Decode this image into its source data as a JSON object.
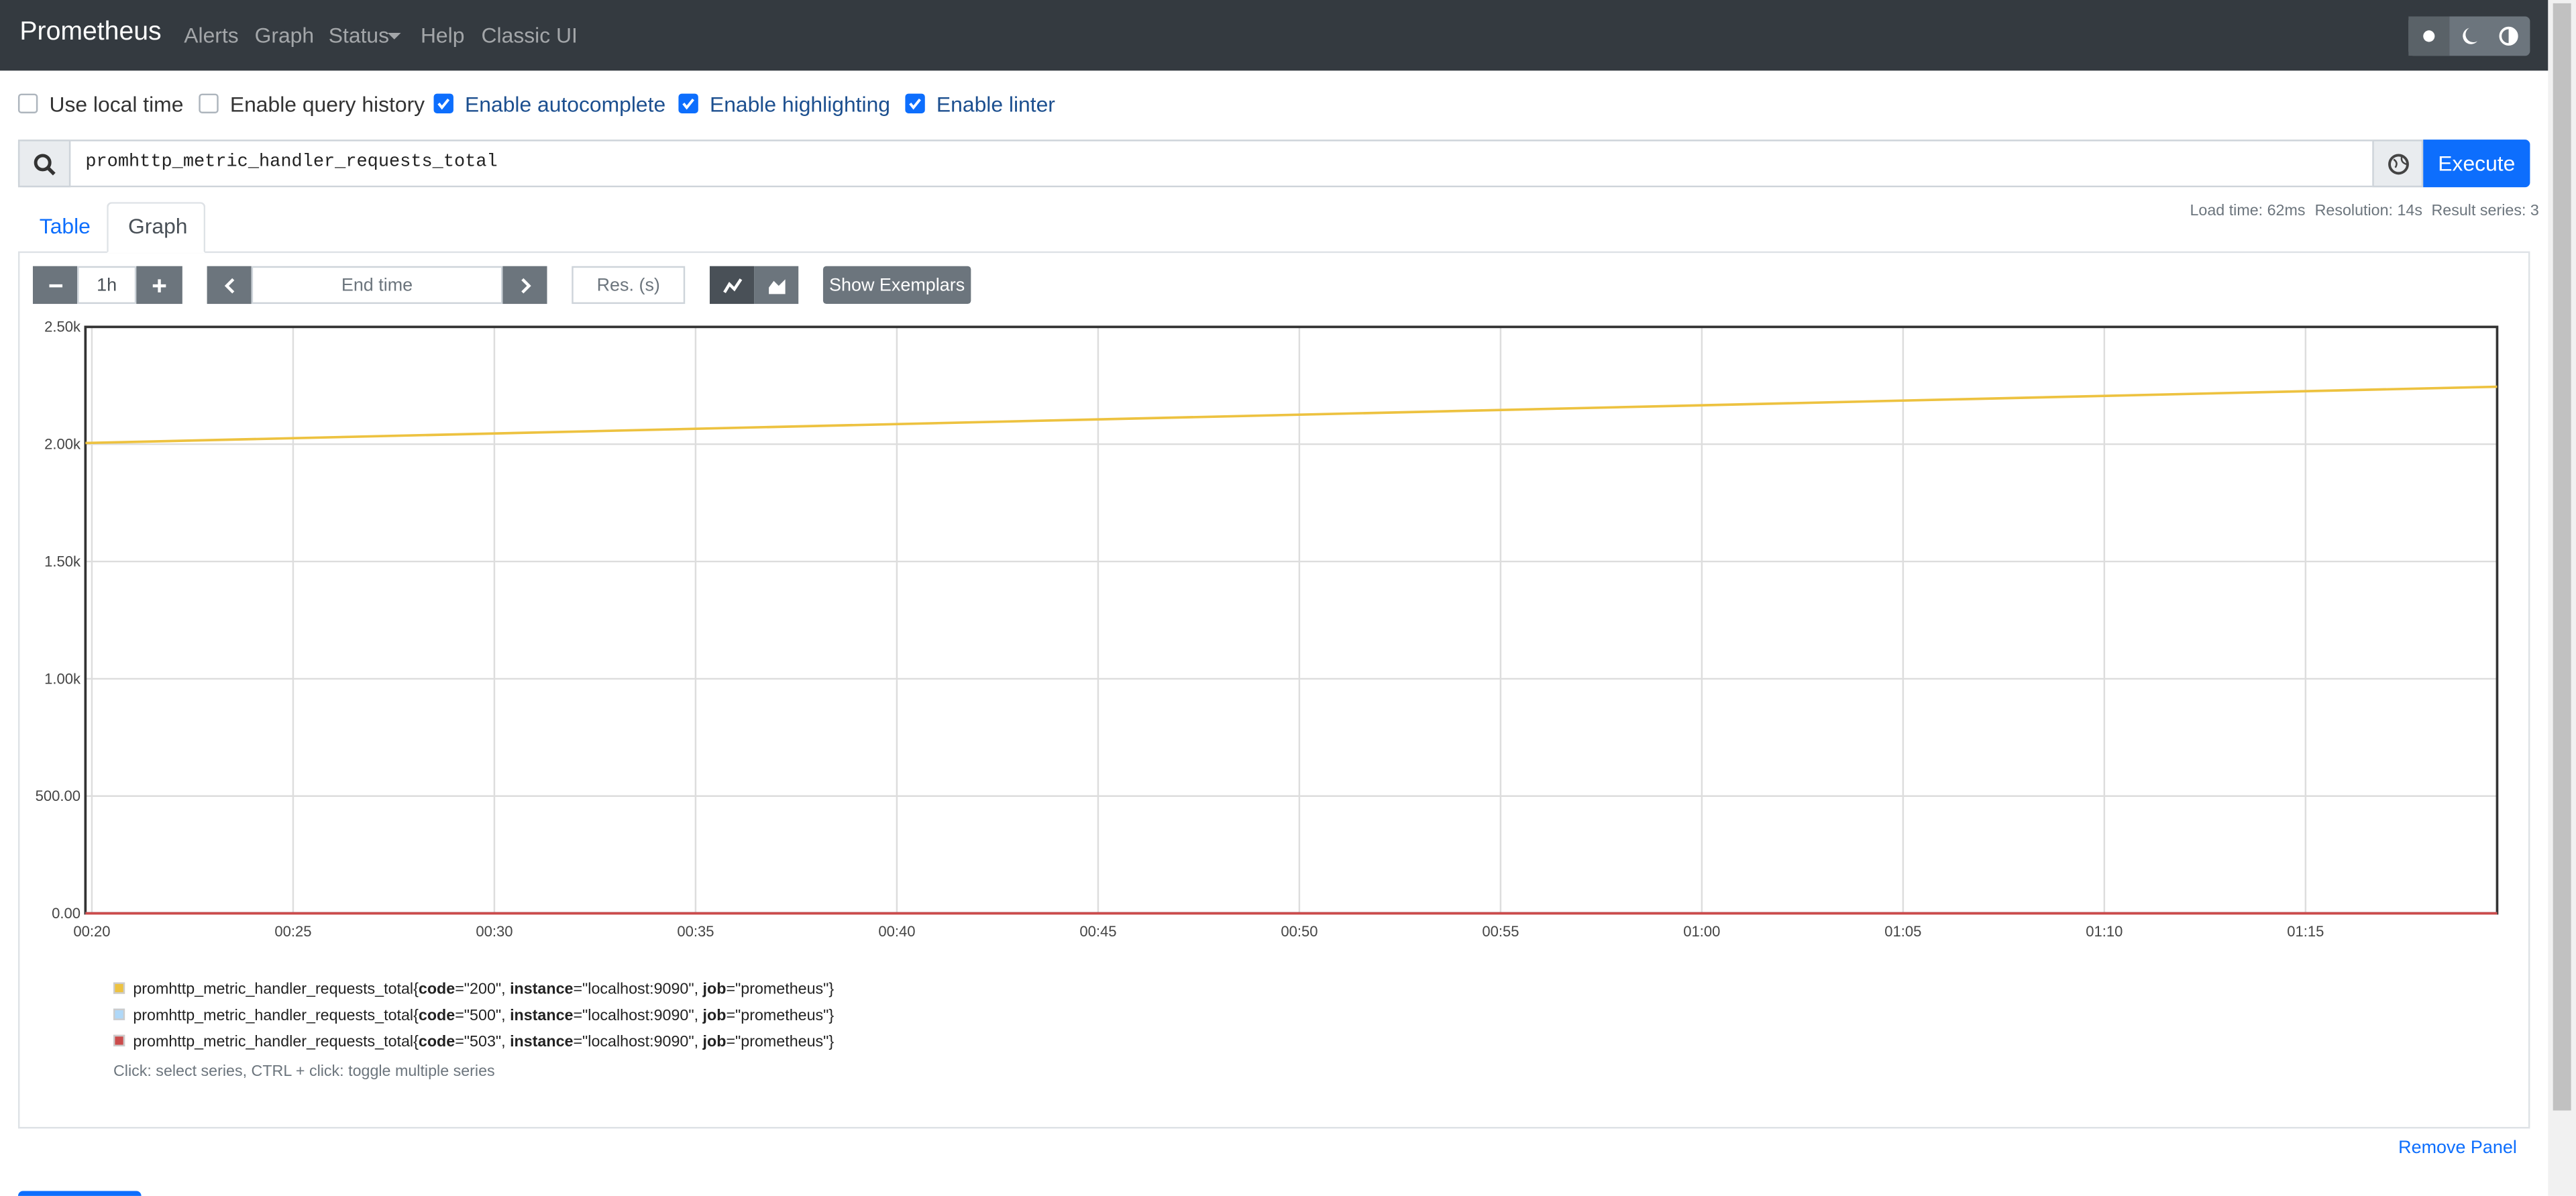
{
  "navbar": {
    "brand": "Prometheus",
    "links": [
      "Alerts",
      "Graph",
      "Status",
      "Help",
      "Classic UI"
    ]
  },
  "options": [
    {
      "label": "Use local time",
      "checked": false
    },
    {
      "label": "Enable query history",
      "checked": false
    },
    {
      "label": "Enable autocomplete",
      "checked": true
    },
    {
      "label": "Enable highlighting",
      "checked": true
    },
    {
      "label": "Enable linter",
      "checked": true
    }
  ],
  "query": {
    "expression": "promhttp_metric_handler_requests_total",
    "button": "Execute"
  },
  "tabs": [
    "Table",
    "Graph"
  ],
  "active_tab": 1,
  "stats": [
    "Load time: 62ms",
    "Resolution: 14s",
    "Result series: 3"
  ],
  "controls": {
    "range": "1h",
    "end_time": "End time",
    "resolution": "Res. (s)",
    "exemplars": "Show Exemplars"
  },
  "chart_data": {
    "type": "line",
    "x": [
      19.84,
      79.76
    ],
    "series": [
      {
        "name": "promhttp_metric_handler_requests_total{code=\"200\", instance=\"localhost:9090\", job=\"prometheus\"}",
        "color": "#edc240",
        "values": [
          2005,
          2245
        ]
      },
      {
        "name": "promhttp_metric_handler_requests_total{code=\"500\", instance=\"localhost:9090\", job=\"prometheus\"}",
        "color": "#afd8f8",
        "values": [
          0,
          0
        ]
      },
      {
        "name": "promhttp_metric_handler_requests_total{code=\"503\", instance=\"localhost:9090\", job=\"prometheus\"}",
        "color": "#cb4b4b",
        "values": [
          0,
          0
        ]
      }
    ],
    "xlim": [
      19.84,
      79.76
    ],
    "xticks": [
      {
        "value": 20,
        "label": "00:20"
      },
      {
        "value": 25,
        "label": "00:25"
      },
      {
        "value": 30,
        "label": "00:30"
      },
      {
        "value": 35,
        "label": "00:35"
      },
      {
        "value": 40,
        "label": "00:40"
      },
      {
        "value": 45,
        "label": "00:45"
      },
      {
        "value": 50,
        "label": "00:50"
      },
      {
        "value": 55,
        "label": "00:55"
      },
      {
        "value": 60,
        "label": "01:00"
      },
      {
        "value": 65,
        "label": "01:05"
      },
      {
        "value": 70,
        "label": "01:10"
      },
      {
        "value": 75,
        "label": "01:15"
      }
    ],
    "ylim": [
      0,
      2500
    ],
    "yticks": [
      {
        "value": 0,
        "label": "0.00"
      },
      {
        "value": 500,
        "label": "500.00"
      },
      {
        "value": 1000,
        "label": "1.00k"
      },
      {
        "value": 1500,
        "label": "1.50k"
      },
      {
        "value": 2000,
        "label": "2.00k"
      },
      {
        "value": 2500,
        "label": "2.50k"
      }
    ],
    "grid": true
  },
  "legend_hint": "Click: select series, CTRL + click: toggle multiple series",
  "remove_panel": "Remove Panel"
}
